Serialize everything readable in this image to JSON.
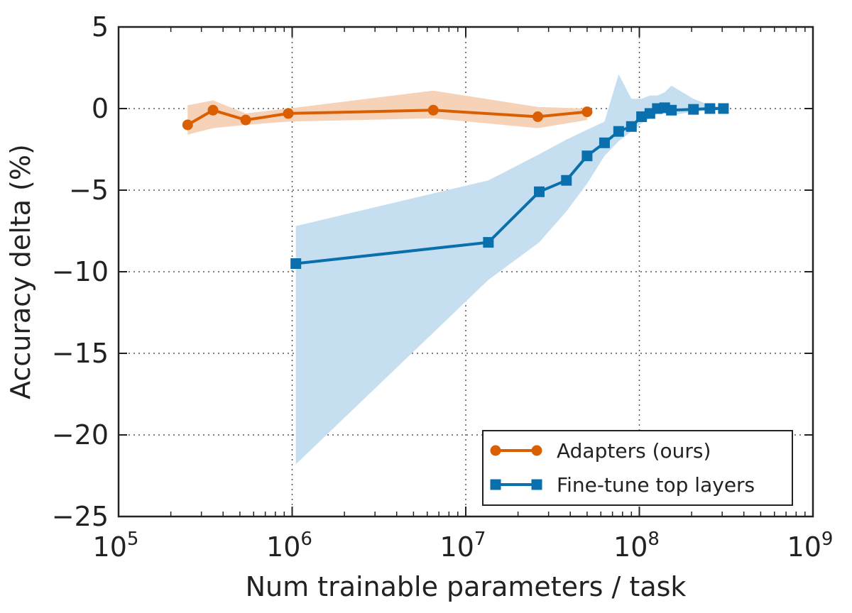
{
  "chart_data": {
    "type": "line",
    "title": "",
    "xlabel": "Num trainable parameters / task",
    "ylabel": "Accuracy delta (%)",
    "xscale": "log",
    "xlim": [
      100000,
      1000000000
    ],
    "ylim": [
      -25,
      5
    ],
    "x_ticks": [
      {
        "value": 100000,
        "base": "10",
        "exp": "5"
      },
      {
        "value": 1000000,
        "base": "10",
        "exp": "6"
      },
      {
        "value": 10000000,
        "base": "10",
        "exp": "7"
      },
      {
        "value": 100000000,
        "base": "10",
        "exp": "8"
      },
      {
        "value": 1000000000,
        "base": "10",
        "exp": "9"
      }
    ],
    "y_ticks": [
      {
        "value": 5,
        "label": "5"
      },
      {
        "value": 0,
        "label": "0"
      },
      {
        "value": -5,
        "label": "−5"
      },
      {
        "value": -10,
        "label": "−10"
      },
      {
        "value": -15,
        "label": "−15"
      },
      {
        "value": -20,
        "label": "−20"
      },
      {
        "value": -25,
        "label": "−25"
      }
    ],
    "grid": true,
    "legend_position": "lower-right",
    "series": [
      {
        "name": "Adapters (ours)",
        "color": "#d95f02",
        "marker": "circle",
        "points": [
          {
            "x": 250000,
            "y": -1.0
          },
          {
            "x": 350000,
            "y": -0.1
          },
          {
            "x": 540000,
            "y": -0.7
          },
          {
            "x": 950000,
            "y": -0.3
          },
          {
            "x": 6500000,
            "y": -0.1
          },
          {
            "x": 26000000,
            "y": -0.5
          },
          {
            "x": 50000000,
            "y": -0.2
          }
        ],
        "band": [
          {
            "x": 250000,
            "lo": -1.6,
            "hi": 0.2
          },
          {
            "x": 350000,
            "lo": -1.2,
            "hi": 0.5
          },
          {
            "x": 540000,
            "lo": -1.0,
            "hi": -0.3
          },
          {
            "x": 950000,
            "lo": -0.8,
            "hi": 0.0
          },
          {
            "x": 6500000,
            "lo": -0.6,
            "hi": 1.1
          },
          {
            "x": 26000000,
            "lo": -1.2,
            "hi": 0.1
          },
          {
            "x": 50000000,
            "lo": -0.7,
            "hi": 0.0
          }
        ]
      },
      {
        "name": "Fine-tune top layers",
        "color": "#0a6fad",
        "marker": "square",
        "points": [
          {
            "x": 1050000,
            "y": -9.5
          },
          {
            "x": 13500000,
            "y": -8.2
          },
          {
            "x": 26500000,
            "y": -5.1
          },
          {
            "x": 38000000,
            "y": -4.4
          },
          {
            "x": 50000000,
            "y": -2.9
          },
          {
            "x": 63000000,
            "y": -2.1
          },
          {
            "x": 76000000,
            "y": -1.4
          },
          {
            "x": 90000000,
            "y": -1.1
          },
          {
            "x": 103000000,
            "y": -0.5
          },
          {
            "x": 115000000,
            "y": -0.3
          },
          {
            "x": 127000000,
            "y": 0.0
          },
          {
            "x": 140000000,
            "y": 0.05
          },
          {
            "x": 153000000,
            "y": -0.1
          },
          {
            "x": 205000000,
            "y": -0.05
          },
          {
            "x": 255000000,
            "y": 0.0
          },
          {
            "x": 305000000,
            "y": 0.0
          }
        ],
        "band": [
          {
            "x": 1050000,
            "lo": -21.8,
            "hi": -7.2
          },
          {
            "x": 13500000,
            "lo": -10.5,
            "hi": -4.4
          },
          {
            "x": 26500000,
            "lo": -8.2,
            "hi": -2.8
          },
          {
            "x": 38000000,
            "lo": -6.3,
            "hi": -1.9
          },
          {
            "x": 50000000,
            "lo": -4.6,
            "hi": -1.3
          },
          {
            "x": 63000000,
            "lo": -2.9,
            "hi": -0.8
          },
          {
            "x": 76000000,
            "lo": -2.0,
            "hi": 2.1
          },
          {
            "x": 90000000,
            "lo": -1.4,
            "hi": 0.6
          },
          {
            "x": 103000000,
            "lo": -0.9,
            "hi": 0.6
          },
          {
            "x": 115000000,
            "lo": -0.6,
            "hi": 0.8
          },
          {
            "x": 127000000,
            "lo": -0.3,
            "hi": 0.8
          },
          {
            "x": 140000000,
            "lo": -0.3,
            "hi": 1.0
          },
          {
            "x": 153000000,
            "lo": -0.4,
            "hi": 1.4
          },
          {
            "x": 205000000,
            "lo": -0.2,
            "hi": 0.6
          },
          {
            "x": 255000000,
            "lo": -0.1,
            "hi": 0.2
          },
          {
            "x": 305000000,
            "lo": -0.1,
            "hi": 0.1
          }
        ]
      }
    ]
  }
}
